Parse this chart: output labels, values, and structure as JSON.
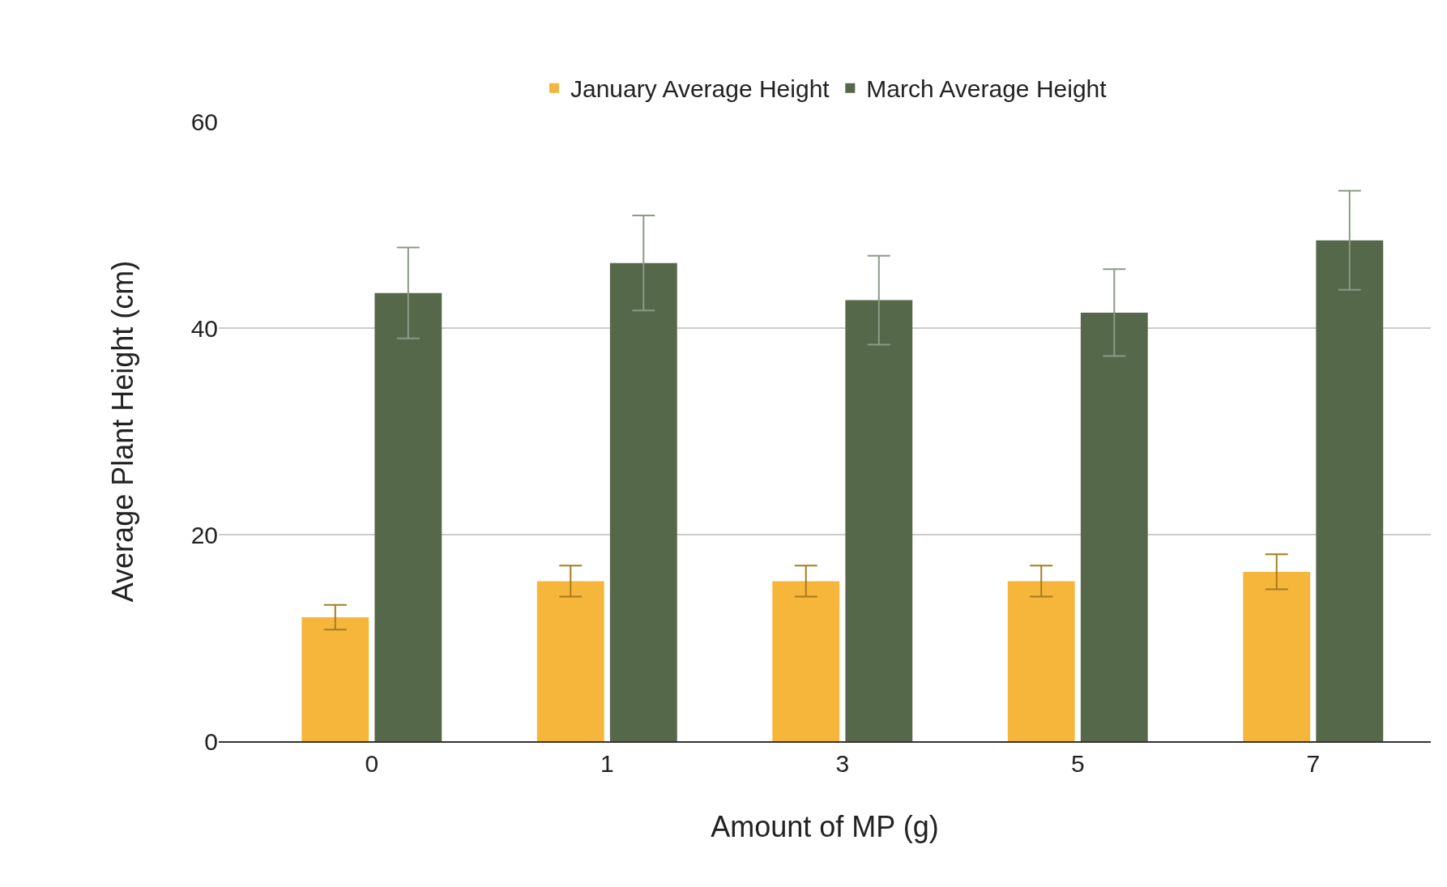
{
  "chart_data": {
    "type": "bar",
    "xlabel": "Amount of MP (g)",
    "ylabel": "Average Plant Height (cm)",
    "categories": [
      "0",
      "1",
      "3",
      "5",
      "7"
    ],
    "series": [
      {
        "name": "January Average Height",
        "color": "#f6b63c",
        "values": [
          12,
          15.5,
          15.5,
          15.5,
          16.4
        ],
        "errors": [
          1.2,
          1.5,
          1.5,
          1.5,
          1.7
        ]
      },
      {
        "name": "March Average Height",
        "color": "#55684a",
        "values": [
          43.4,
          46.3,
          42.7,
          41.5,
          48.5
        ],
        "errors": [
          4.4,
          4.6,
          4.3,
          4.2,
          4.8
        ]
      }
    ],
    "ylim": [
      0,
      60
    ],
    "yticks": [
      0,
      20,
      40,
      60
    ],
    "grid": "y",
    "legend": "top"
  }
}
